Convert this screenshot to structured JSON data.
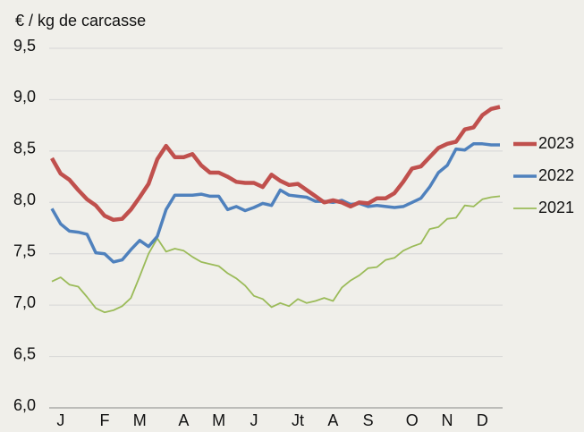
{
  "chart_data": {
    "type": "line",
    "y_label": "€ / kg de carcasse",
    "categories": [
      null,
      "J",
      null,
      null,
      null,
      null,
      "F",
      null,
      null,
      null,
      "M",
      null,
      null,
      null,
      null,
      "A",
      null,
      null,
      null,
      "M",
      null,
      null,
      null,
      "J",
      null,
      null,
      null,
      null,
      "Jt",
      null,
      null,
      null,
      "A",
      null,
      null,
      null,
      "S",
      null,
      null,
      null,
      null,
      "O",
      null,
      null,
      null,
      "N",
      null,
      null,
      null,
      "D",
      null,
      null
    ],
    "series": [
      {
        "name": "2023",
        "color": "#c0504d",
        "values": [
          8.43,
          8.28,
          8.22,
          8.12,
          8.03,
          7.97,
          7.87,
          7.83,
          7.84,
          7.93,
          8.05,
          8.18,
          8.42,
          8.55,
          8.44,
          8.44,
          8.47,
          8.36,
          8.29,
          8.29,
          8.25,
          8.2,
          8.19,
          8.19,
          8.15,
          8.27,
          8.21,
          8.17,
          8.18,
          8.12,
          8.06,
          8.0,
          8.02,
          8.0,
          7.96,
          8.0,
          7.99,
          8.04,
          8.04,
          8.09,
          8.2,
          8.33,
          8.35,
          8.44,
          8.53,
          8.57,
          8.59,
          8.71,
          8.73,
          8.85,
          8.91,
          8.93
        ]
      },
      {
        "name": "2022",
        "color": "#4f81bd",
        "values": [
          7.94,
          7.79,
          7.72,
          7.71,
          7.69,
          7.51,
          7.5,
          7.42,
          7.44,
          7.54,
          7.63,
          7.57,
          7.67,
          7.93,
          8.07,
          8.07,
          8.07,
          8.08,
          8.06,
          8.06,
          7.93,
          7.96,
          7.92,
          7.95,
          7.99,
          7.97,
          8.12,
          8.07,
          8.06,
          8.05,
          8.01,
          8.01,
          8.0,
          8.02,
          7.98,
          7.99,
          7.96,
          7.97,
          7.96,
          7.95,
          7.96,
          8.0,
          8.04,
          8.15,
          8.29,
          8.36,
          8.52,
          8.51,
          8.57,
          8.57,
          8.56,
          8.56
        ]
      },
      {
        "name": "2021",
        "color": "#9bbb59",
        "values": [
          7.23,
          7.27,
          7.2,
          7.18,
          7.08,
          6.97,
          6.93,
          6.95,
          6.99,
          7.07,
          7.28,
          7.5,
          7.65,
          7.52,
          7.55,
          7.53,
          7.47,
          7.42,
          7.4,
          7.38,
          7.31,
          7.26,
          7.19,
          7.09,
          7.06,
          6.98,
          7.02,
          6.99,
          7.06,
          7.02,
          7.04,
          7.07,
          7.04,
          7.17,
          7.24,
          7.29,
          7.36,
          7.37,
          7.44,
          7.46,
          7.53,
          7.57,
          7.6,
          7.74,
          7.76,
          7.84,
          7.85,
          7.97,
          7.96,
          8.03,
          8.05,
          8.06
        ]
      }
    ],
    "ylim": [
      6,
      9.5
    ],
    "yticks": [
      {
        "value": 6,
        "label": "6,0"
      },
      {
        "value": 6.5,
        "label": "6,5"
      },
      {
        "value": 7,
        "label": "7,0"
      },
      {
        "value": 7.5,
        "label": "7,5"
      },
      {
        "value": 8,
        "label": "8,0"
      },
      {
        "value": 8.5,
        "label": "8,5"
      },
      {
        "value": 9,
        "label": "9,0"
      },
      {
        "value": 9.5,
        "label": "9,5"
      }
    ],
    "grid": true,
    "legend": "right"
  }
}
